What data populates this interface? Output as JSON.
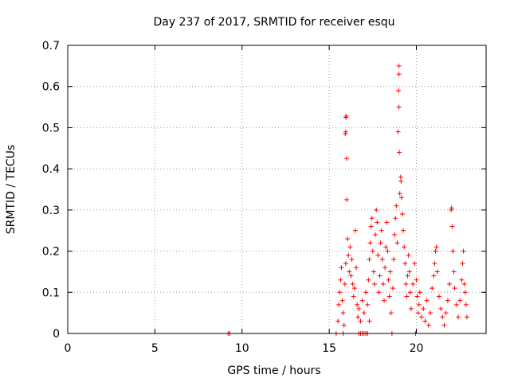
{
  "chart_data": {
    "type": "scatter",
    "title": "Day 237 of 2017, SRMTID for receiver esqu",
    "xlabel": "GPS time / hours",
    "ylabel": "SRMTID / TECUs",
    "xlim": [
      0,
      24
    ],
    "ylim": [
      0,
      0.7
    ],
    "xticks": [
      0,
      5,
      10,
      15,
      20
    ],
    "xtick_labels": [
      "0",
      "5",
      "10",
      "15",
      "20"
    ],
    "yticks": [
      0,
      0.1,
      0.2,
      0.3,
      0.4,
      0.5,
      0.6,
      0.7
    ],
    "ytick_labels": [
      "0",
      "0.1",
      "0.2",
      "0.3",
      "0.4",
      "0.5",
      "0.6",
      "0.7"
    ],
    "grid": true,
    "marker": "+",
    "series_color": "#ff0000",
    "series": [
      {
        "name": "SRMTID",
        "points": [
          [
            9.2,
            0.0
          ],
          [
            9.3,
            0.0
          ],
          [
            15.4,
            0.0
          ],
          [
            15.8,
            0.0
          ],
          [
            15.5,
            0.03
          ],
          [
            15.55,
            0.07
          ],
          [
            15.6,
            0.1
          ],
          [
            15.65,
            0.13
          ],
          [
            15.7,
            0.16
          ],
          [
            15.75,
            0.08
          ],
          [
            15.8,
            0.05
          ],
          [
            15.85,
            0.02
          ],
          [
            15.9,
            0.12
          ],
          [
            15.95,
            0.17
          ],
          [
            15.92,
            0.485
          ],
          [
            15.95,
            0.49
          ],
          [
            15.95,
            0.525
          ],
          [
            15.98,
            0.528
          ],
          [
            16.0,
            0.425
          ],
          [
            16.0,
            0.325
          ],
          [
            16.05,
            0.23
          ],
          [
            16.1,
            0.19
          ],
          [
            16.15,
            0.15
          ],
          [
            16.2,
            0.21
          ],
          [
            16.25,
            0.14
          ],
          [
            16.3,
            0.18
          ],
          [
            16.35,
            0.12
          ],
          [
            16.4,
            0.09
          ],
          [
            16.45,
            0.11
          ],
          [
            16.5,
            0.25
          ],
          [
            16.55,
            0.16
          ],
          [
            16.6,
            0.07
          ],
          [
            16.65,
            0.04
          ],
          [
            16.7,
            0.0
          ],
          [
            16.8,
            0.0
          ],
          [
            16.9,
            0.0
          ],
          [
            17.0,
            0.0
          ],
          [
            17.1,
            0.0
          ],
          [
            17.2,
            0.0
          ],
          [
            16.7,
            0.06
          ],
          [
            16.8,
            0.03
          ],
          [
            16.9,
            0.08
          ],
          [
            17.0,
            0.05
          ],
          [
            17.1,
            0.1
          ],
          [
            17.2,
            0.07
          ],
          [
            17.3,
            0.03
          ],
          [
            17.25,
            0.13
          ],
          [
            17.3,
            0.18
          ],
          [
            17.35,
            0.22
          ],
          [
            17.4,
            0.26
          ],
          [
            17.45,
            0.28
          ],
          [
            17.5,
            0.2
          ],
          [
            17.55,
            0.15
          ],
          [
            17.6,
            0.12
          ],
          [
            17.65,
            0.24
          ],
          [
            17.7,
            0.3
          ],
          [
            17.75,
            0.27
          ],
          [
            17.8,
            0.19
          ],
          [
            17.85,
            0.1
          ],
          [
            17.9,
            0.14
          ],
          [
            17.95,
            0.22
          ],
          [
            18.0,
            0.25
          ],
          [
            18.05,
            0.18
          ],
          [
            18.1,
            0.12
          ],
          [
            18.15,
            0.08
          ],
          [
            18.2,
            0.16
          ],
          [
            18.25,
            0.21
          ],
          [
            18.3,
            0.27
          ],
          [
            18.35,
            0.2
          ],
          [
            18.4,
            0.13
          ],
          [
            18.45,
            0.09
          ],
          [
            18.5,
            0.15
          ],
          [
            18.55,
            0.05
          ],
          [
            18.6,
            0.0
          ],
          [
            18.65,
            0.11
          ],
          [
            18.7,
            0.18
          ],
          [
            18.75,
            0.24
          ],
          [
            18.8,
            0.28
          ],
          [
            18.85,
            0.31
          ],
          [
            18.9,
            0.22
          ],
          [
            18.95,
            0.49
          ],
          [
            19.0,
            0.55
          ],
          [
            18.98,
            0.59
          ],
          [
            19.0,
            0.63
          ],
          [
            19.0,
            0.65
          ],
          [
            19.02,
            0.44
          ],
          [
            19.05,
            0.34
          ],
          [
            19.1,
            0.38
          ],
          [
            19.12,
            0.37
          ],
          [
            19.15,
            0.33
          ],
          [
            19.2,
            0.29
          ],
          [
            19.25,
            0.25
          ],
          [
            19.3,
            0.21
          ],
          [
            19.35,
            0.17
          ],
          [
            19.4,
            0.12
          ],
          [
            19.45,
            0.09
          ],
          [
            19.5,
            0.14
          ],
          [
            19.55,
            0.19
          ],
          [
            19.6,
            0.15
          ],
          [
            19.65,
            0.1
          ],
          [
            19.7,
            0.06
          ],
          [
            19.8,
            0.12
          ],
          [
            19.9,
            0.17
          ],
          [
            19.95,
            0.0
          ],
          [
            20.0,
            0.13
          ],
          [
            20.05,
            0.09
          ],
          [
            20.1,
            0.05
          ],
          [
            20.15,
            0.07
          ],
          [
            20.2,
            0.1
          ],
          [
            20.3,
            0.04
          ],
          [
            20.4,
            0.06
          ],
          [
            20.5,
            0.03
          ],
          [
            20.6,
            0.08
          ],
          [
            20.7,
            0.02
          ],
          [
            20.8,
            0.05
          ],
          [
            20.9,
            0.11
          ],
          [
            21.0,
            0.14
          ],
          [
            21.05,
            0.17
          ],
          [
            21.1,
            0.2
          ],
          [
            21.15,
            0.21
          ],
          [
            21.2,
            0.15
          ],
          [
            21.3,
            0.09
          ],
          [
            21.4,
            0.06
          ],
          [
            21.5,
            0.04
          ],
          [
            21.6,
            0.02
          ],
          [
            21.7,
            0.05
          ],
          [
            21.8,
            0.08
          ],
          [
            21.9,
            0.12
          ],
          [
            22.0,
            0.3
          ],
          [
            22.02,
            0.305
          ],
          [
            22.05,
            0.26
          ],
          [
            22.1,
            0.2
          ],
          [
            22.15,
            0.15
          ],
          [
            22.2,
            0.11
          ],
          [
            22.3,
            0.07
          ],
          [
            22.4,
            0.04
          ],
          [
            22.5,
            0.08
          ],
          [
            22.6,
            0.13
          ],
          [
            22.65,
            0.17
          ],
          [
            22.7,
            0.2
          ],
          [
            22.75,
            0.12
          ],
          [
            22.8,
            0.1
          ],
          [
            22.85,
            0.07
          ],
          [
            22.9,
            0.04
          ]
        ]
      }
    ]
  }
}
